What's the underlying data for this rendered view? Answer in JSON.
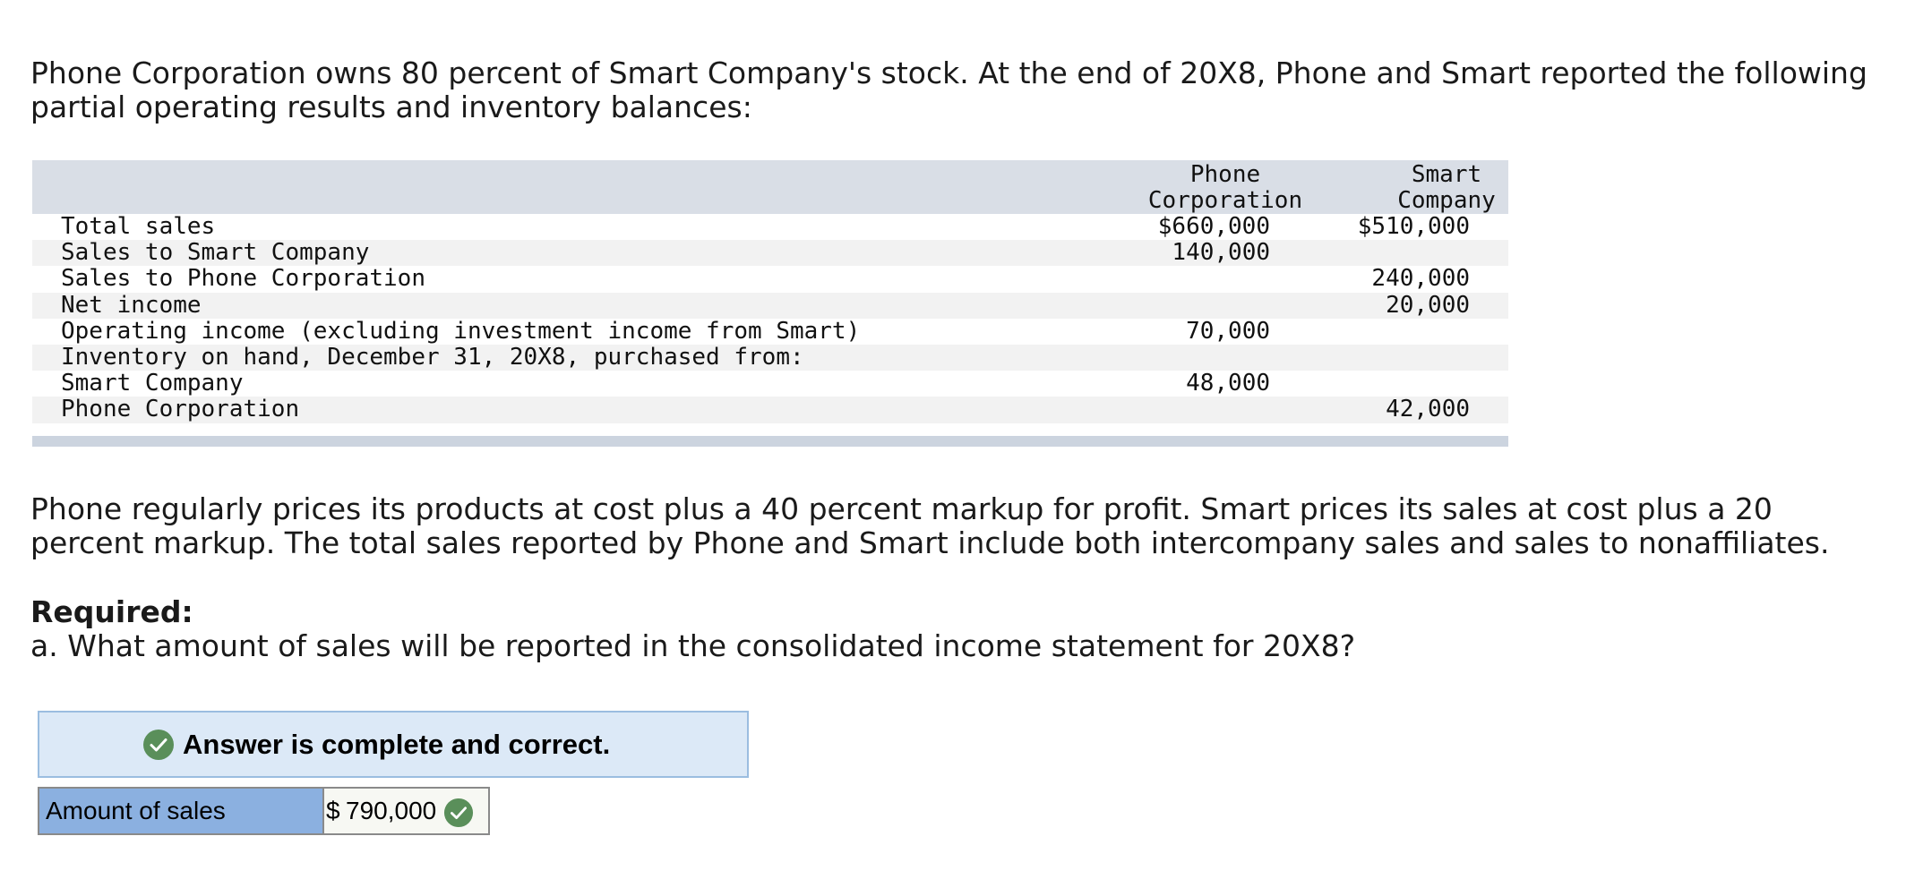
{
  "intro_text": "Phone Corporation owns 80 percent of Smart Company's stock. At the end of 20X8, Phone and Smart reported the following partial operating results and inventory balances:",
  "table": {
    "col1_header_line1": "Phone",
    "col1_header_line2": "Corporation",
    "col2_header_line1": "Smart",
    "col2_header_line2": "Company",
    "rows": [
      {
        "label": "Total sales",
        "phone": "$660,000",
        "smart": "$510,000"
      },
      {
        "label": "Sales to Smart Company",
        "phone": "140,000",
        "smart": ""
      },
      {
        "label": "Sales to Phone Corporation",
        "phone": "",
        "smart": "240,000"
      },
      {
        "label": "Net income",
        "phone": "",
        "smart": "20,000"
      },
      {
        "label": "Operating income (excluding investment income from Smart)",
        "phone": "70,000",
        "smart": ""
      },
      {
        "label": "Inventory on hand, December 31, 20X8, purchased from:",
        "phone": "",
        "smart": ""
      },
      {
        "label": "Smart Company",
        "phone": "48,000",
        "smart": ""
      },
      {
        "label": "Phone Corporation",
        "phone": "",
        "smart": "42,000"
      }
    ]
  },
  "pricing_text": "Phone regularly prices its products at cost plus a 40 percent markup for profit. Smart prices its sales at cost plus a 20 percent markup. The total sales reported by Phone and Smart include both intercompany sales and sales to nonaffiliates.",
  "required_label": "Required:",
  "question_text": "a. What amount of sales will be reported in the consolidated income statement for 20X8?",
  "answer": {
    "banner_text": "Answer is complete and correct.",
    "label": "Amount of sales",
    "currency": "$",
    "value": "790,000"
  },
  "colors": {
    "header_bg": "#d9dee6",
    "banner_bg": "#dce9f7",
    "label_bg": "#8bb0e0",
    "check_green": "#5a8f5a"
  }
}
